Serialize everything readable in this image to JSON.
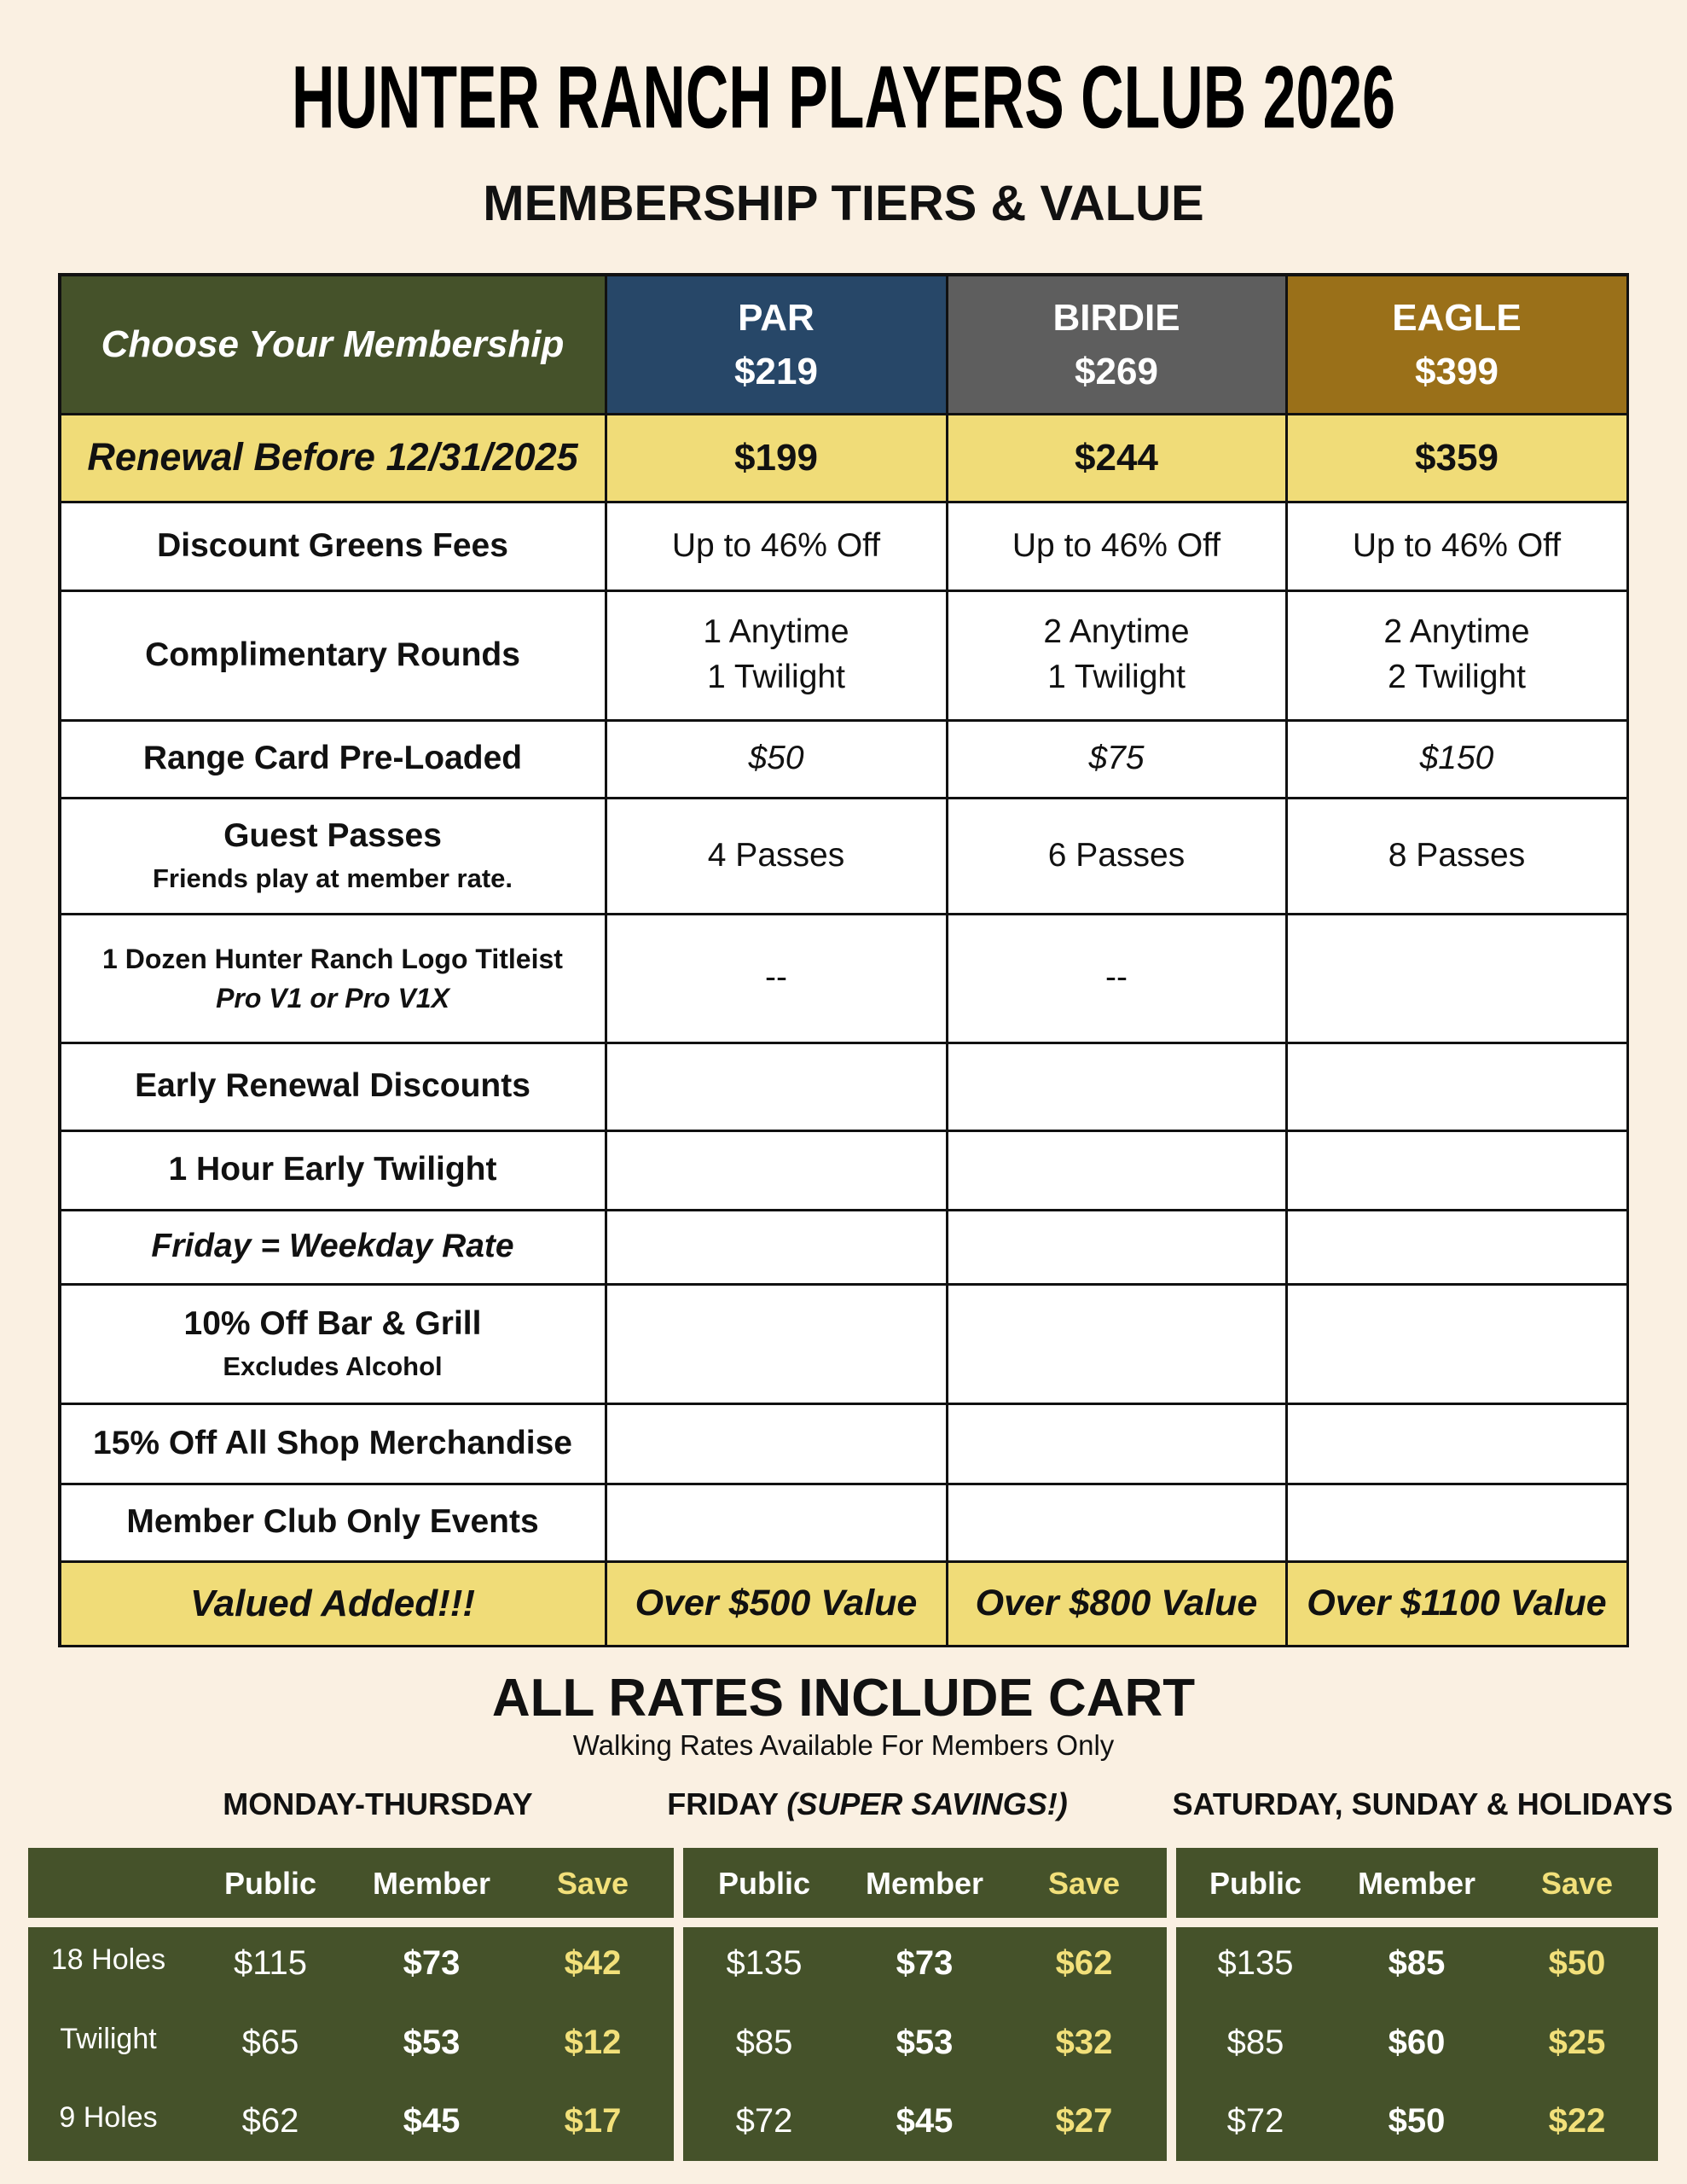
{
  "header": {
    "title": "HUNTER RANCH PLAYERS CLUB 2026",
    "subtitle": "MEMBERSHIP TIERS & VALUE"
  },
  "membership_table": {
    "corner": "Choose Your Membership",
    "tiers": [
      {
        "name": "PAR",
        "price": "$219"
      },
      {
        "name": "BIRDIE",
        "price": "$269"
      },
      {
        "name": "EAGLE",
        "price": "$399"
      }
    ],
    "renewal": {
      "label": "Renewal Before 12/31/2025",
      "prices": [
        "$199",
        "$244",
        "$359"
      ]
    },
    "rows": [
      {
        "label": "Discount Greens Fees",
        "cells": [
          "Up to 46% Off",
          "Up to 46% Off",
          "Up to 46% Off"
        ]
      },
      {
        "label": "Complimentary Rounds",
        "cells": [
          [
            "1 Anytime",
            "1 Twilight"
          ],
          [
            "2 Anytime",
            "1 Twilight"
          ],
          [
            "2 Anytime",
            "2 Twilight"
          ]
        ]
      },
      {
        "label": "Range Card Pre-Loaded",
        "cells": [
          "$50",
          "$75",
          "$150"
        ]
      },
      {
        "label": "Guest Passes",
        "note": "Friends play at member rate.",
        "cells": [
          "4 Passes",
          "6 Passes",
          "8 Passes"
        ]
      },
      {
        "label": "1 Dozen Hunter Ranch Logo Titleist",
        "note": "Pro V1 or Pro V1X",
        "cells": [
          "--",
          "--"
        ]
      },
      {
        "label": "Early Renewal Discounts"
      },
      {
        "label": "1 Hour Early Twilight"
      },
      {
        "label": "Friday = Weekday Rate"
      },
      {
        "label": "10% Off Bar & Grill",
        "note": "Excludes Alcohol"
      },
      {
        "label": "15% Off All Shop Merchandise"
      },
      {
        "label": "Member Club Only Events"
      }
    ],
    "value_row": {
      "label": "Valued Added!!!",
      "cells": [
        "Over $500 Value",
        "Over $800 Value",
        "Over $1100 Value"
      ]
    }
  },
  "rates": {
    "title": "ALL RATES INCLUDE CART",
    "subtitle": "Walking Rates Available For Members Only",
    "row_labels": [
      "18 Holes",
      "Twilight",
      "9 Holes"
    ],
    "tables": [
      {
        "heading": "MONDAY-THURSDAY",
        "columns": [
          "Public",
          "Member",
          "Save"
        ],
        "rows": [
          [
            "$115",
            "$73",
            "$42"
          ],
          [
            "$65",
            "$53",
            "$12"
          ],
          [
            "$62",
            "$45",
            "$17"
          ]
        ]
      },
      {
        "heading": "FRIDAY",
        "heading_note": "(SUPER SAVINGS!)",
        "columns": [
          "Public",
          "Member",
          "Save"
        ],
        "rows": [
          [
            "$135",
            "$73",
            "$62"
          ],
          [
            "$85",
            "$53",
            "$32"
          ],
          [
            "$72",
            "$45",
            "$27"
          ]
        ]
      },
      {
        "heading": "SATURDAY, SUNDAY & HOLIDAYS",
        "columns": [
          "Public",
          "Member",
          "Save"
        ],
        "rows": [
          [
            "$135",
            "$85",
            "$50"
          ],
          [
            "$85",
            "$60",
            "$25"
          ],
          [
            "$72",
            "$50",
            "$22"
          ]
        ]
      }
    ]
  }
}
